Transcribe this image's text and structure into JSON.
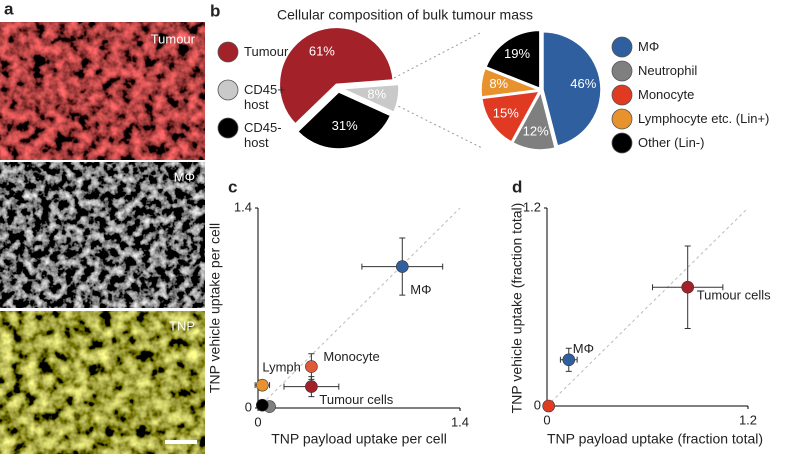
{
  "panel_labels": [
    "a",
    "b",
    "c",
    "d"
  ],
  "images": {
    "labels": [
      "Tumour",
      "MΦ",
      "TNP"
    ]
  },
  "chart_data": [
    {
      "type": "pie",
      "title": "Cellular composition of bulk tumour mass",
      "categories": [
        "Tumour",
        "CD45+ host",
        "CD45- host"
      ],
      "values": [
        61,
        8,
        31
      ],
      "value_labels": [
        "61%",
        "8%",
        "31%"
      ],
      "colors": [
        "#a3222a",
        "#c9c9c9",
        "#000000"
      ]
    },
    {
      "type": "pie",
      "categories": [
        "MΦ",
        "Neutrophil",
        "Monocyte",
        "Lymphocyte etc. (Lin+)",
        "Other (Lin-)"
      ],
      "values": [
        46,
        12,
        15,
        8,
        19
      ],
      "value_labels": [
        "46%",
        "12%",
        "15%",
        "8%",
        "19%"
      ],
      "colors": [
        "#2f5f9e",
        "#7f7f7f",
        "#e03a22",
        "#e8922e",
        "#000000"
      ]
    },
    {
      "type": "scatter",
      "xlabel": "TNP payload uptake per cell",
      "ylabel": "TNP vehicle uptake per cell",
      "xlim": [
        0,
        1.4
      ],
      "ylim": [
        0,
        1.4
      ],
      "xticks": [
        0,
        1.4
      ],
      "yticks": [
        0,
        1.4
      ],
      "labels": [
        "MΦ",
        "Monocyte",
        "Tumour cells",
        "Lymph",
        null,
        null
      ],
      "x": [
        1.0,
        0.37,
        0.37,
        0.03,
        0.08,
        0.03
      ],
      "y": [
        0.99,
        0.29,
        0.15,
        0.16,
        0.01,
        0.02
      ],
      "xerr": [
        0.28,
        null,
        0.19,
        0.05,
        null,
        null
      ],
      "yerr": [
        0.2,
        0.09,
        0.07,
        null,
        null,
        null
      ],
      "colors": [
        "#2f5f9e",
        "#e05a3a",
        "#a3222a",
        "#e8922e",
        "#7f7f7f",
        "#000000"
      ]
    },
    {
      "type": "scatter",
      "xlabel": "TNP payload uptake (fraction total)",
      "ylabel": "TNP vehicle uptake (fraction total)",
      "xlim": [
        0,
        1.2
      ],
      "ylim": [
        0,
        1.2
      ],
      "xticks": [
        0,
        1.2
      ],
      "yticks": [
        0,
        1.2
      ],
      "labels": [
        "MΦ",
        "Tumour cells",
        null
      ],
      "x": [
        0.13,
        0.84,
        0.01
      ],
      "y": [
        0.28,
        0.72,
        0.0
      ],
      "xerr": [
        0.05,
        0.21,
        null
      ],
      "yerr": [
        0.07,
        0.25,
        null
      ],
      "colors": [
        "#2f5f9e",
        "#a3222a",
        "#e03a22"
      ]
    }
  ]
}
